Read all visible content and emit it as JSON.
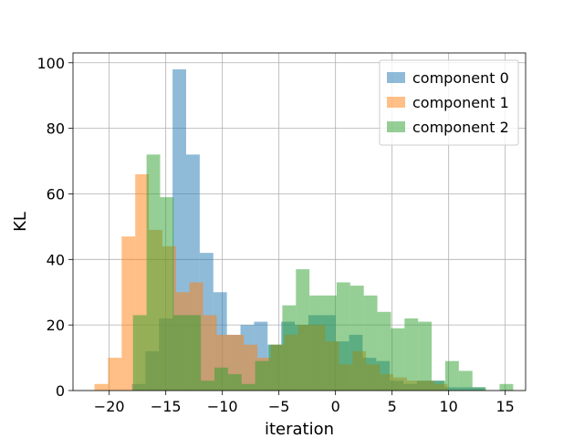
{
  "chart_data": {
    "type": "bar",
    "subtype": "histogram",
    "title": "",
    "xlabel": "iteration",
    "ylabel": "KL",
    "xlim": [
      -23.2,
      16.8
    ],
    "ylim": [
      0,
      103
    ],
    "xticks": [
      -20,
      -15,
      -10,
      -5,
      0,
      5,
      10,
      15
    ],
    "yticks": [
      0,
      20,
      40,
      60,
      80,
      100
    ],
    "grid": true,
    "legend_position": "top-right",
    "opacity": 0.5,
    "series": [
      {
        "name": "component 0",
        "color": "#1f77b4",
        "bins": [
          {
            "x0": -18.0,
            "x1": -16.8,
            "value": 2
          },
          {
            "x0": -16.8,
            "x1": -15.6,
            "value": 12
          },
          {
            "x0": -15.6,
            "x1": -14.4,
            "value": 22
          },
          {
            "x0": -14.4,
            "x1": -13.2,
            "value": 98
          },
          {
            "x0": -13.2,
            "x1": -12.0,
            "value": 72
          },
          {
            "x0": -12.0,
            "x1": -10.8,
            "value": 42
          },
          {
            "x0": -10.8,
            "x1": -9.6,
            "value": 30
          },
          {
            "x0": -9.6,
            "x1": -8.4,
            "value": 17
          },
          {
            "x0": -8.4,
            "x1": -7.2,
            "value": 20
          },
          {
            "x0": -7.2,
            "x1": -6.0,
            "value": 21
          },
          {
            "x0": -6.0,
            "x1": -4.8,
            "value": 14
          },
          {
            "x0": -4.8,
            "x1": -3.6,
            "value": 21
          },
          {
            "x0": -3.6,
            "x1": -2.4,
            "value": 20
          },
          {
            "x0": -2.4,
            "x1": -1.2,
            "value": 23
          },
          {
            "x0": -1.2,
            "x1": 0.0,
            "value": 23
          },
          {
            "x0": 0.0,
            "x1": 1.2,
            "value": 15
          },
          {
            "x0": 1.2,
            "x1": 2.4,
            "value": 17
          },
          {
            "x0": 2.4,
            "x1": 3.6,
            "value": 10
          },
          {
            "x0": 3.6,
            "x1": 4.8,
            "value": 9
          },
          {
            "x0": 4.8,
            "x1": 6.0,
            "value": 3
          },
          {
            "x0": 6.0,
            "x1": 7.2,
            "value": 2
          },
          {
            "x0": 7.2,
            "x1": 8.4,
            "value": 3
          },
          {
            "x0": 8.4,
            "x1": 9.6,
            "value": 3
          },
          {
            "x0": 9.6,
            "x1": 10.8,
            "value": 1
          },
          {
            "x0": 10.8,
            "x1": 12.0,
            "value": 1
          },
          {
            "x0": 12.0,
            "x1": 13.2,
            "value": 1
          }
        ]
      },
      {
        "name": "component 1",
        "color": "#ff7f0e",
        "bins": [
          {
            "x0": -21.3,
            "x1": -20.1,
            "value": 2
          },
          {
            "x0": -20.1,
            "x1": -18.9,
            "value": 10
          },
          {
            "x0": -18.9,
            "x1": -17.7,
            "value": 47
          },
          {
            "x0": -17.7,
            "x1": -16.5,
            "value": 66
          },
          {
            "x0": -16.5,
            "x1": -15.3,
            "value": 49
          },
          {
            "x0": -15.3,
            "x1": -14.1,
            "value": 44
          },
          {
            "x0": -14.1,
            "x1": -12.9,
            "value": 30
          },
          {
            "x0": -12.9,
            "x1": -11.7,
            "value": 33
          },
          {
            "x0": -11.7,
            "x1": -10.5,
            "value": 23
          },
          {
            "x0": -10.5,
            "x1": -9.3,
            "value": 17
          },
          {
            "x0": -9.3,
            "x1": -8.1,
            "value": 17
          },
          {
            "x0": -8.1,
            "x1": -6.9,
            "value": 14
          },
          {
            "x0": -6.9,
            "x1": -5.7,
            "value": 10
          },
          {
            "x0": -5.7,
            "x1": -4.5,
            "value": 14
          },
          {
            "x0": -4.5,
            "x1": -3.3,
            "value": 17
          },
          {
            "x0": -3.3,
            "x1": -2.1,
            "value": 20
          },
          {
            "x0": -2.1,
            "x1": -0.9,
            "value": 20
          },
          {
            "x0": -0.9,
            "x1": 0.3,
            "value": 15
          },
          {
            "x0": 0.3,
            "x1": 1.5,
            "value": 8
          },
          {
            "x0": 1.5,
            "x1": 2.7,
            "value": 12
          },
          {
            "x0": 2.7,
            "x1": 3.9,
            "value": 8
          },
          {
            "x0": 3.9,
            "x1": 5.1,
            "value": 5
          },
          {
            "x0": 5.1,
            "x1": 6.3,
            "value": 4
          },
          {
            "x0": 6.3,
            "x1": 7.5,
            "value": 3
          },
          {
            "x0": 7.5,
            "x1": 8.7,
            "value": 3
          },
          {
            "x0": 8.7,
            "x1": 9.9,
            "value": 2
          }
        ]
      },
      {
        "name": "component 2",
        "color": "#2ca02c",
        "bins": [
          {
            "x0": -17.9,
            "x1": -16.7,
            "value": 23
          },
          {
            "x0": -16.7,
            "x1": -15.5,
            "value": 72
          },
          {
            "x0": -15.5,
            "x1": -14.3,
            "value": 59
          },
          {
            "x0": -14.3,
            "x1": -13.1,
            "value": 23
          },
          {
            "x0": -13.1,
            "x1": -11.9,
            "value": 23
          },
          {
            "x0": -11.9,
            "x1": -10.7,
            "value": 3
          },
          {
            "x0": -10.7,
            "x1": -9.5,
            "value": 7
          },
          {
            "x0": -9.5,
            "x1": -8.3,
            "value": 5
          },
          {
            "x0": -8.3,
            "x1": -7.1,
            "value": 2
          },
          {
            "x0": -7.1,
            "x1": -5.9,
            "value": 9
          },
          {
            "x0": -5.9,
            "x1": -4.7,
            "value": 14
          },
          {
            "x0": -4.7,
            "x1": -3.5,
            "value": 26
          },
          {
            "x0": -3.5,
            "x1": -2.3,
            "value": 37
          },
          {
            "x0": -2.3,
            "x1": -1.1,
            "value": 29
          },
          {
            "x0": -1.1,
            "x1": 0.1,
            "value": 29
          },
          {
            "x0": 0.1,
            "x1": 1.3,
            "value": 33
          },
          {
            "x0": 1.3,
            "x1": 2.5,
            "value": 32
          },
          {
            "x0": 2.5,
            "x1": 3.7,
            "value": 29
          },
          {
            "x0": 3.7,
            "x1": 4.9,
            "value": 24
          },
          {
            "x0": 4.9,
            "x1": 6.1,
            "value": 19
          },
          {
            "x0": 6.1,
            "x1": 7.3,
            "value": 22
          },
          {
            "x0": 7.3,
            "x1": 8.5,
            "value": 21
          },
          {
            "x0": 8.5,
            "x1": 9.7,
            "value": 3
          },
          {
            "x0": 9.7,
            "x1": 10.9,
            "value": 9
          },
          {
            "x0": 10.9,
            "x1": 12.1,
            "value": 6
          },
          {
            "x0": 12.1,
            "x1": 13.3,
            "value": 1
          },
          {
            "x0": 13.3,
            "x1": 14.5,
            "value": 0
          },
          {
            "x0": 14.5,
            "x1": 15.7,
            "value": 2
          }
        ]
      }
    ]
  }
}
